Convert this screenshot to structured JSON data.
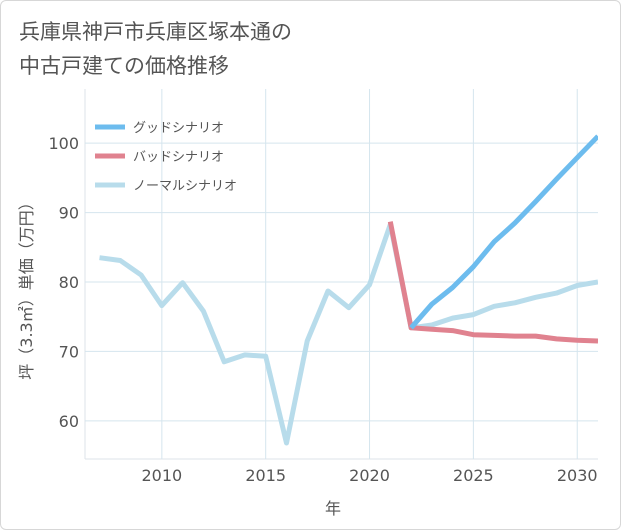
{
  "chart_data": {
    "type": "line",
    "title_lines": [
      "兵庫県神戸市兵庫区塚本通の",
      "中古戸建ての価格推移"
    ],
    "xlabel": "年",
    "ylabel": "坪（3.3㎡）単価（万円）",
    "xlim": [
      2006.3,
      2031
    ],
    "ylim": [
      54.5,
      107.8
    ],
    "xticks": [
      2010,
      2015,
      2020,
      2025,
      2030
    ],
    "yticks": [
      60,
      70,
      80,
      90,
      100
    ],
    "grid": true,
    "legend_position": "top-left",
    "series": [
      {
        "name": "グッドシナリオ",
        "color": "#6dbcee",
        "x": [
          2022,
          2023,
          2024,
          2025,
          2026,
          2027,
          2028,
          2029,
          2030,
          2031
        ],
        "values": [
          73.4,
          76.8,
          79.2,
          82.2,
          85.8,
          88.5,
          91.6,
          94.8,
          97.9,
          101.0
        ]
      },
      {
        "name": "バッドシナリオ",
        "color": "#e0828f",
        "x": [
          2021,
          2022,
          2023,
          2024,
          2025,
          2026,
          2027,
          2028,
          2029,
          2030,
          2031
        ],
        "values": [
          88.7,
          73.4,
          73.2,
          73.0,
          72.4,
          72.3,
          72.2,
          72.2,
          71.8,
          71.6,
          71.5
        ]
      },
      {
        "name": "ノーマルシナリオ",
        "color": "#b8dceb",
        "x": [
          2007,
          2008,
          2009,
          2010,
          2011,
          2012,
          2013,
          2014,
          2015,
          2016,
          2017,
          2018,
          2019,
          2020,
          2021,
          2022,
          2023,
          2024,
          2025,
          2026,
          2027,
          2028,
          2029,
          2030,
          2031
        ],
        "values": [
          83.5,
          83.1,
          81.0,
          76.6,
          79.9,
          75.8,
          68.5,
          69.5,
          69.3,
          56.8,
          71.5,
          78.7,
          76.3,
          79.6,
          88.3,
          73.4,
          73.8,
          74.8,
          75.3,
          76.5,
          77.0,
          77.8,
          78.4,
          79.5,
          80.0
        ]
      }
    ]
  }
}
